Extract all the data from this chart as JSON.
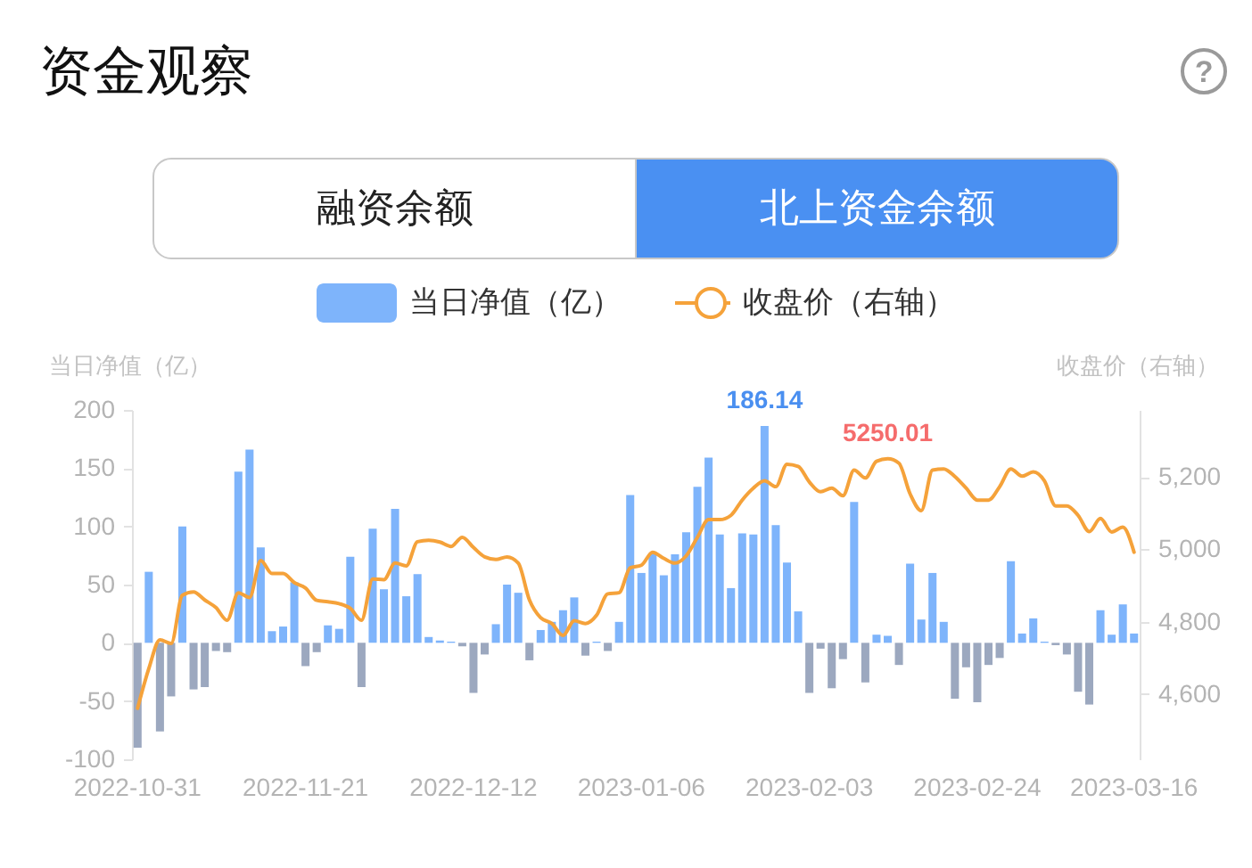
{
  "chart_data": {
    "type": "bar",
    "title": "资金观察",
    "ylabel": "当日净值（亿）",
    "y2label": "收盘价（右轴）",
    "categories": [
      "2022-10-31",
      null,
      null,
      null,
      null,
      null,
      null,
      null,
      null,
      null,
      null,
      null,
      null,
      null,
      null,
      "2022-11-21",
      null,
      null,
      null,
      null,
      null,
      null,
      null,
      null,
      null,
      null,
      null,
      null,
      null,
      null,
      "2022-12-12",
      null,
      null,
      null,
      null,
      null,
      null,
      null,
      null,
      null,
      null,
      null,
      null,
      null,
      null,
      "2023-01-06",
      null,
      null,
      null,
      null,
      null,
      null,
      null,
      null,
      null,
      null,
      null,
      null,
      null,
      null,
      "2023-02-03",
      null,
      null,
      null,
      null,
      null,
      null,
      null,
      null,
      null,
      null,
      null,
      null,
      null,
      null,
      "2023-02-24",
      null,
      null,
      null,
      null,
      null,
      null,
      null,
      null,
      null,
      null,
      null,
      null,
      null,
      "2023-03-16"
    ],
    "series": [
      {
        "name": "当日净值（亿）",
        "color": "#7eb4fb",
        "colors": [
          "#9ca8bf",
          "#7eb4fb",
          "#9ca8bf",
          "#9ca8bf",
          "#7eb4fb",
          "#9ca8bf",
          "#9ca8bf",
          "#9ca8bf",
          "#9ca8bf",
          "#7eb4fb",
          "#7eb4fb",
          "#7eb4fb",
          "#7eb4fb",
          "#7eb4fb",
          "#7eb4fb",
          "#9ca8bf",
          "#9ca8bf",
          "#7eb4fb",
          "#7eb4fb",
          "#7eb4fb",
          "#9ca8bf",
          "#7eb4fb",
          "#7eb4fb",
          "#7eb4fb",
          "#7eb4fb",
          "#7eb4fb",
          "#7eb4fb",
          "#7eb4fb",
          "#7eb4fb",
          "#9ca8bf",
          "#9ca8bf",
          "#9ca8bf",
          "#7eb4fb",
          "#7eb4fb",
          "#7eb4fb",
          "#9ca8bf",
          "#7eb4fb",
          "#7eb4fb",
          "#7eb4fb",
          "#7eb4fb",
          "#9ca8bf",
          "#7eb4fb",
          "#9ca8bf",
          "#7eb4fb",
          "#7eb4fb",
          "#7eb4fb",
          "#7eb4fb",
          "#7eb4fb",
          "#7eb4fb",
          "#7eb4fb",
          "#7eb4fb",
          "#7eb4fb",
          "#7eb4fb",
          "#7eb4fb",
          "#7eb4fb",
          "#7eb4fb",
          "#7eb4fb",
          "#7eb4fb",
          "#7eb4fb",
          "#7eb4fb",
          "#9ca8bf",
          "#9ca8bf",
          "#9ca8bf",
          "#9ca8bf",
          "#7eb4fb",
          "#9ca8bf",
          "#7eb4fb",
          "#7eb4fb",
          "#9ca8bf",
          "#7eb4fb",
          "#7eb4fb",
          "#7eb4fb",
          "#7eb4fb",
          "#9ca8bf",
          "#9ca8bf",
          "#9ca8bf",
          "#9ca8bf",
          "#9ca8bf",
          "#7eb4fb",
          "#7eb4fb",
          "#7eb4fb",
          "#7eb4fb",
          "#9ca8bf",
          "#9ca8bf",
          "#9ca8bf",
          "#9ca8bf",
          "#7eb4fb",
          "#7eb4fb",
          "#7eb4fb",
          "#7eb4fb"
        ],
        "values": [
          -90,
          61,
          -76,
          -46,
          100,
          -40,
          -38,
          -7,
          -8,
          147,
          166,
          82,
          10,
          14,
          52,
          -20,
          -8,
          15,
          12,
          74,
          -38,
          98,
          46,
          115,
          40,
          59,
          5,
          2,
          1,
          -3,
          -43,
          -10,
          16,
          50,
          43,
          -15,
          11,
          18,
          28,
          39,
          -11,
          1,
          -7,
          18,
          127,
          60,
          77,
          58,
          76,
          95,
          134,
          159,
          93,
          47,
          94,
          93,
          186.14,
          101,
          69,
          27,
          -43,
          -5,
          -39,
          -14,
          121,
          -34,
          7,
          6,
          -19,
          68,
          20,
          60,
          18,
          -48,
          -21,
          -51,
          -19,
          -13,
          70,
          8,
          21,
          1,
          -2,
          -10,
          -42,
          -53,
          28,
          7,
          33,
          8
        ],
        "value_labels": [
          null,
          null,
          null,
          null,
          null,
          null,
          null,
          null,
          null,
          null,
          null,
          null,
          null,
          null,
          null,
          null,
          null,
          null,
          null,
          null,
          null,
          null,
          null,
          null,
          null,
          null,
          null,
          null,
          null,
          null,
          null,
          null,
          null,
          null,
          null,
          null,
          null,
          null,
          null,
          null,
          null,
          null,
          null,
          null,
          null,
          null,
          null,
          null,
          null,
          null,
          null,
          null,
          null,
          null,
          null,
          null,
          "186.14",
          null,
          null,
          null,
          null,
          null,
          null,
          null,
          null,
          null,
          null,
          null,
          null,
          null,
          null,
          null,
          null,
          null,
          null,
          null,
          null,
          null,
          null,
          null,
          null,
          null,
          null,
          null,
          null,
          null,
          null,
          null,
          null,
          null
        ]
      },
      {
        "name": "收盘价（右轴）",
        "type": "line",
        "axis": "y2",
        "color": "#f5a23a",
        "values": [
          4561,
          4670,
          4750,
          4740,
          4873,
          4882,
          4860,
          4839,
          4804,
          4880,
          4867,
          4969,
          4933,
          4933,
          4908,
          4893,
          4859,
          4855,
          4850,
          4837,
          4804,
          4918,
          4916,
          4962,
          4954,
          5021,
          5025,
          5020,
          5008,
          5033,
          5005,
          4979,
          4972,
          4979,
          4962,
          4860,
          4811,
          4795,
          4762,
          4803,
          4795,
          4818,
          4877,
          4880,
          4949,
          4956,
          4992,
          4975,
          4962,
          4982,
          5033,
          5082,
          5082,
          5094,
          5136,
          5169,
          5189,
          5173,
          5235,
          5229,
          5186,
          5159,
          5169,
          5148,
          5219,
          5197,
          5243,
          5250.01,
          5238,
          5153,
          5107,
          5219,
          5222,
          5201,
          5169,
          5136,
          5136,
          5173,
          5222,
          5202,
          5214,
          5189,
          5120,
          5120,
          5094,
          5049,
          5085,
          5048,
          5061,
          4992
        ],
        "value_labels": [
          null,
          null,
          null,
          null,
          null,
          null,
          null,
          null,
          null,
          null,
          null,
          null,
          null,
          null,
          null,
          null,
          null,
          null,
          null,
          null,
          null,
          null,
          null,
          null,
          null,
          null,
          null,
          null,
          null,
          null,
          null,
          null,
          null,
          null,
          null,
          null,
          null,
          null,
          null,
          null,
          null,
          null,
          null,
          null,
          null,
          null,
          null,
          null,
          null,
          null,
          null,
          null,
          null,
          null,
          null,
          null,
          null,
          null,
          null,
          null,
          null,
          null,
          null,
          null,
          null,
          null,
          null,
          "5250.01",
          null,
          null,
          null,
          null,
          null,
          null,
          null,
          null,
          null,
          null,
          null,
          null,
          null,
          null,
          null,
          null,
          null,
          null,
          null,
          null,
          null,
          null
        ]
      }
    ],
    "ylim": [
      -100,
      200
    ],
    "yticks": [
      -100,
      -50,
      0,
      50,
      100,
      150,
      200
    ],
    "y2lim": [
      4420,
      5385
    ],
    "y2ticks": [
      {
        "value": 4600,
        "label": "4,600"
      },
      {
        "value": 4800,
        "label": "4,800"
      },
      {
        "value": 5000,
        "label": "5,000"
      },
      {
        "value": 5200,
        "label": "5,200"
      }
    ],
    "grid": false,
    "legend": "top",
    "annotations": [
      "融资余额",
      "北上资金余额",
      "?"
    ]
  }
}
